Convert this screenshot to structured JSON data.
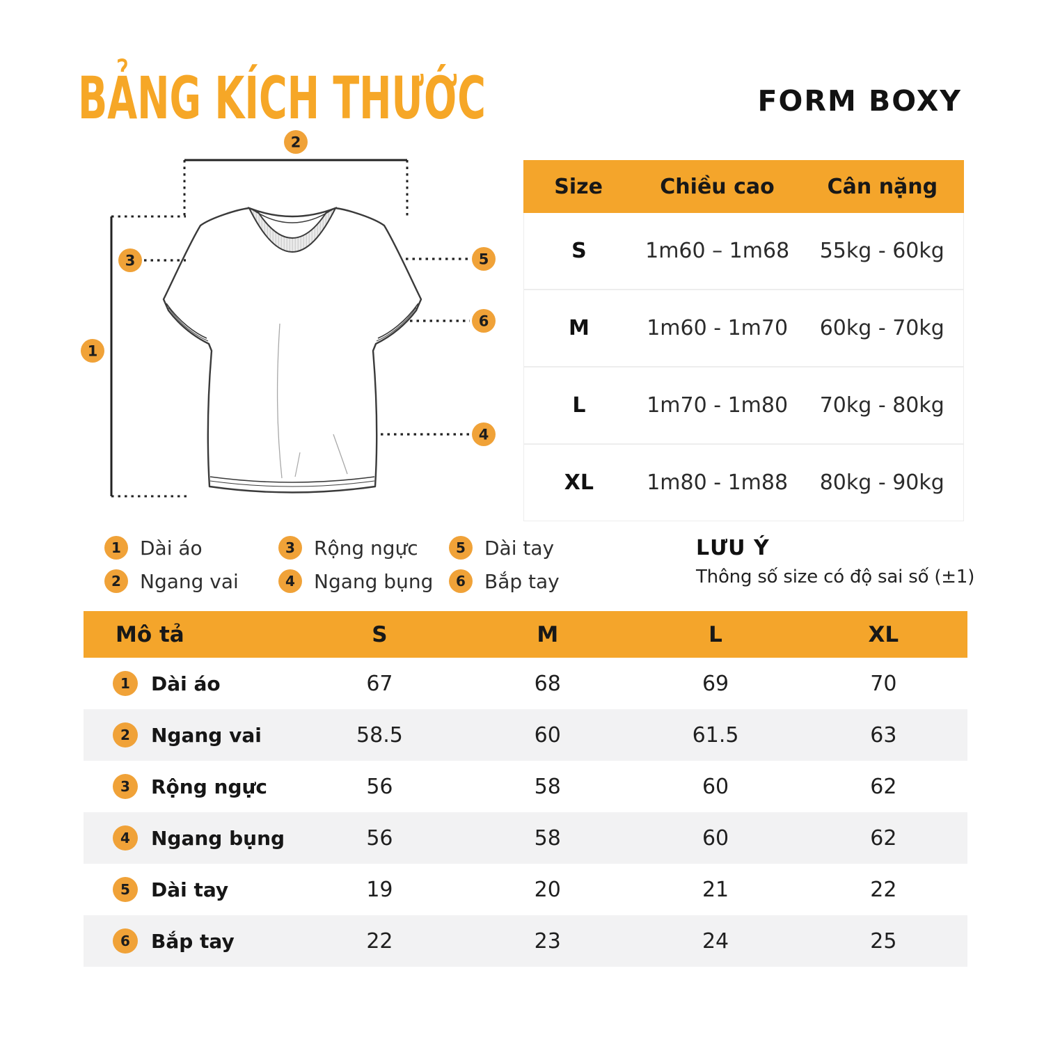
{
  "colors": {
    "accent": "#F4A52B",
    "circle": "#F0A238",
    "row_alt": "#F2F2F3",
    "title": "#F6A727"
  },
  "header": {
    "title": "BẢNG KÍCH THƯỚC",
    "form_label": "FORM BOXY"
  },
  "diagram": {
    "callouts": [
      "1",
      "2",
      "3",
      "4",
      "5",
      "6"
    ]
  },
  "size_guide": {
    "headers": [
      "Size",
      "Chiều cao",
      "Cân nặng"
    ],
    "rows": [
      {
        "size": "S",
        "height": "1m60 – 1m68",
        "weight": "55kg - 60kg"
      },
      {
        "size": "M",
        "height": "1m60 - 1m70",
        "weight": "60kg - 70kg"
      },
      {
        "size": "L",
        "height": "1m70 - 1m80",
        "weight": "70kg - 80kg"
      },
      {
        "size": "XL",
        "height": "1m80 - 1m88",
        "weight": "80kg - 90kg"
      }
    ]
  },
  "legend": {
    "items": [
      {
        "num": "1",
        "label": "Dài áo"
      },
      {
        "num": "2",
        "label": "Ngang vai"
      },
      {
        "num": "3",
        "label": "Rộng ngực"
      },
      {
        "num": "4",
        "label": "Ngang bụng"
      },
      {
        "num": "5",
        "label": "Dài tay"
      },
      {
        "num": "6",
        "label": "Bắp tay"
      }
    ]
  },
  "note": {
    "title": "LƯU Ý",
    "text": "Thông số size có độ sai số (±1)"
  },
  "measurements": {
    "headers": [
      "Mô tả",
      "S",
      "M",
      "L",
      "XL"
    ],
    "rows": [
      {
        "num": "1",
        "label": "Dài áo",
        "values": [
          "67",
          "68",
          "69",
          "70"
        ]
      },
      {
        "num": "2",
        "label": "Ngang vai",
        "values": [
          "58.5",
          "60",
          "61.5",
          "63"
        ]
      },
      {
        "num": "3",
        "label": "Rộng ngực",
        "values": [
          "56",
          "58",
          "60",
          "62"
        ]
      },
      {
        "num": "4",
        "label": "Ngang bụng",
        "values": [
          "56",
          "58",
          "60",
          "62"
        ]
      },
      {
        "num": "5",
        "label": "Dài tay",
        "values": [
          "19",
          "20",
          "21",
          "22"
        ]
      },
      {
        "num": "6",
        "label": "Bắp tay",
        "values": [
          "22",
          "23",
          "24",
          "25"
        ]
      }
    ]
  }
}
